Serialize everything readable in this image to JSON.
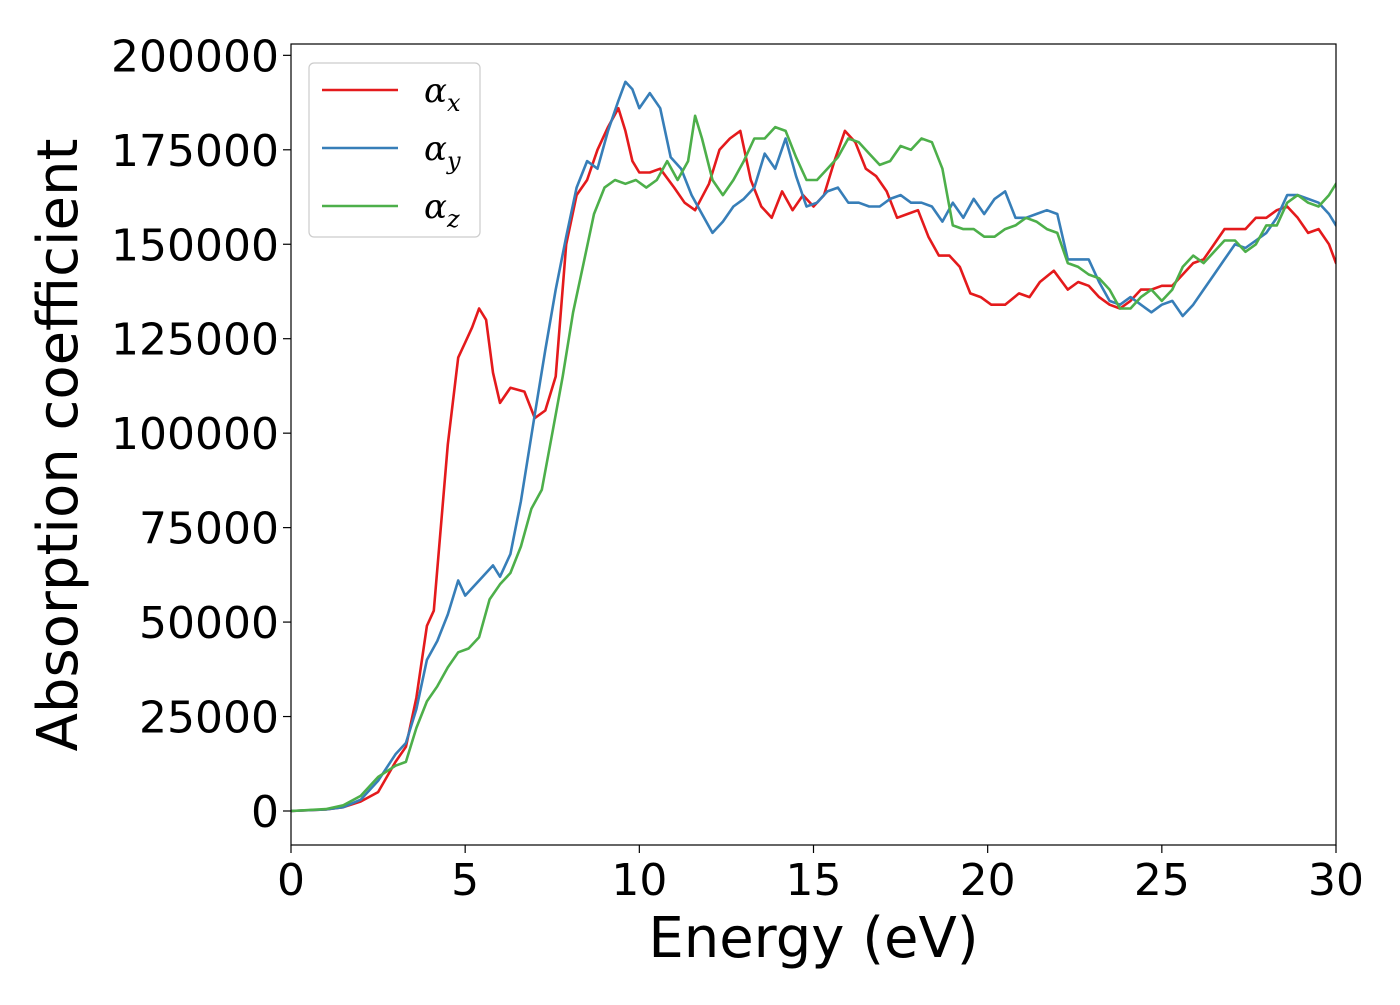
{
  "chart_data": {
    "type": "line",
    "xlabel": "Energy (eV)",
    "ylabel": "Absorption coefficient",
    "xlim": [
      0,
      30
    ],
    "ylim": [
      -9000,
      203000
    ],
    "xticks": [
      0,
      5,
      10,
      15,
      20,
      25,
      30
    ],
    "xtick_labels": [
      "0",
      "5",
      "10",
      "15",
      "20",
      "25",
      "30"
    ],
    "yticks": [
      0,
      25000,
      50000,
      75000,
      100000,
      125000,
      150000,
      175000,
      200000
    ],
    "ytick_labels": [
      "0",
      "25000",
      "50000",
      "75000",
      "100000",
      "125000",
      "150000",
      "175000",
      "200000"
    ],
    "grid": false,
    "legend_position": "top-left",
    "series": [
      {
        "name": "α",
        "subscript": "x",
        "color": "#e41a1c",
        "x": [
          0,
          1,
          1.5,
          2,
          2.5,
          3,
          3.3,
          3.6,
          3.9,
          4.1,
          4.3,
          4.5,
          4.8,
          5.0,
          5.2,
          5.4,
          5.6,
          5.8,
          6.0,
          6.3,
          6.7,
          7.0,
          7.3,
          7.6,
          7.9,
          8.2,
          8.5,
          8.8,
          9.1,
          9.4,
          9.6,
          9.8,
          10.0,
          10.3,
          10.6,
          11.0,
          11.3,
          11.6,
          12.0,
          12.3,
          12.6,
          12.9,
          13.2,
          13.5,
          13.8,
          14.1,
          14.4,
          14.7,
          15.0,
          15.3,
          15.6,
          15.9,
          16.2,
          16.5,
          16.8,
          17.1,
          17.4,
          17.7,
          18.0,
          18.3,
          18.6,
          18.9,
          19.2,
          19.5,
          19.8,
          20.1,
          20.5,
          20.9,
          21.2,
          21.5,
          21.9,
          22.3,
          22.6,
          22.9,
          23.2,
          23.5,
          23.8,
          24.1,
          24.4,
          24.7,
          25.0,
          25.3,
          25.6,
          25.9,
          26.2,
          26.5,
          26.8,
          27.1,
          27.4,
          27.7,
          28.0,
          28.3,
          28.6,
          28.9,
          29.2,
          29.5,
          29.8,
          30.0
        ],
        "y": [
          0,
          400,
          1000,
          2500,
          5000,
          13000,
          17000,
          30000,
          49000,
          53000,
          75000,
          97000,
          120000,
          124000,
          128000,
          133000,
          130000,
          116000,
          108000,
          112000,
          111000,
          104000,
          106000,
          115000,
          150000,
          163000,
          167000,
          175000,
          181000,
          186000,
          180000,
          172000,
          169000,
          169000,
          170000,
          165000,
          161000,
          159000,
          166000,
          175000,
          178000,
          180000,
          167000,
          160000,
          157000,
          164000,
          159000,
          163000,
          160000,
          163000,
          172000,
          180000,
          177000,
          170000,
          168000,
          164000,
          157000,
          158000,
          159000,
          152000,
          147000,
          147000,
          144000,
          137000,
          136000,
          134000,
          134000,
          137000,
          136000,
          140000,
          143000,
          138000,
          140000,
          139000,
          136000,
          134000,
          133000,
          135000,
          138000,
          138000,
          139000,
          139000,
          142000,
          145000,
          146000,
          150000,
          154000,
          154000,
          154000,
          157000,
          157000,
          159000,
          160000,
          157000,
          153000,
          154000,
          150000,
          145000
        ]
      },
      {
        "name": "α",
        "subscript": "y",
        "color": "#377eb8",
        "x": [
          0,
          1,
          1.5,
          2,
          2.5,
          3,
          3.3,
          3.6,
          3.9,
          4.2,
          4.5,
          4.8,
          5.0,
          5.2,
          5.5,
          5.8,
          6.0,
          6.3,
          6.6,
          7.0,
          7.3,
          7.6,
          7.9,
          8.2,
          8.5,
          8.8,
          9.1,
          9.4,
          9.6,
          9.8,
          10.0,
          10.3,
          10.6,
          10.9,
          11.2,
          11.5,
          11.8,
          12.1,
          12.4,
          12.7,
          13.0,
          13.3,
          13.6,
          13.9,
          14.2,
          14.5,
          14.8,
          15.1,
          15.4,
          15.7,
          16.0,
          16.3,
          16.6,
          16.9,
          17.2,
          17.5,
          17.8,
          18.1,
          18.4,
          18.7,
          19.0,
          19.3,
          19.6,
          19.9,
          20.2,
          20.5,
          20.8,
          21.1,
          21.4,
          21.7,
          22.0,
          22.3,
          22.6,
          22.9,
          23.2,
          23.5,
          23.8,
          24.1,
          24.4,
          24.7,
          25.0,
          25.3,
          25.6,
          25.9,
          26.2,
          26.5,
          26.8,
          27.1,
          27.4,
          27.7,
          28.0,
          28.3,
          28.6,
          28.9,
          29.2,
          29.5,
          29.8,
          30.0
        ],
        "y": [
          0,
          400,
          1000,
          3000,
          8000,
          15000,
          18000,
          27000,
          40000,
          45000,
          52000,
          61000,
          57000,
          59000,
          62000,
          65000,
          62000,
          68000,
          82000,
          105000,
          122000,
          138000,
          152000,
          165000,
          172000,
          170000,
          180000,
          188000,
          193000,
          191000,
          186000,
          190000,
          186000,
          173000,
          170000,
          163000,
          158000,
          153000,
          156000,
          160000,
          162000,
          165000,
          174000,
          170000,
          178000,
          168000,
          160000,
          161000,
          164000,
          165000,
          161000,
          161000,
          160000,
          160000,
          162000,
          163000,
          161000,
          161000,
          160000,
          156000,
          161000,
          157000,
          162000,
          158000,
          162000,
          164000,
          157000,
          157000,
          158000,
          159000,
          158000,
          146000,
          146000,
          146000,
          140000,
          135000,
          134000,
          136000,
          134000,
          132000,
          134000,
          135000,
          131000,
          134000,
          138000,
          142000,
          146000,
          150000,
          149000,
          151000,
          153000,
          157000,
          163000,
          163000,
          162000,
          161000,
          158000,
          155000
        ]
      },
      {
        "name": "α",
        "subscript": "z",
        "color": "#4daf4a",
        "x": [
          0,
          1,
          1.5,
          2,
          2.5,
          3,
          3.3,
          3.6,
          3.9,
          4.2,
          4.5,
          4.8,
          5.1,
          5.4,
          5.7,
          6.0,
          6.3,
          6.6,
          6.9,
          7.2,
          7.5,
          7.8,
          8.1,
          8.4,
          8.7,
          9.0,
          9.3,
          9.6,
          9.9,
          10.2,
          10.5,
          10.8,
          11.1,
          11.4,
          11.6,
          11.8,
          12.1,
          12.4,
          12.7,
          13.0,
          13.3,
          13.6,
          13.9,
          14.2,
          14.5,
          14.8,
          15.1,
          15.4,
          15.7,
          16.0,
          16.3,
          16.6,
          16.9,
          17.2,
          17.5,
          17.8,
          18.1,
          18.4,
          18.7,
          19.0,
          19.3,
          19.6,
          19.9,
          20.2,
          20.5,
          20.8,
          21.1,
          21.4,
          21.7,
          22.0,
          22.3,
          22.6,
          22.9,
          23.2,
          23.5,
          23.8,
          24.1,
          24.4,
          24.7,
          25.0,
          25.3,
          25.6,
          25.9,
          26.2,
          26.5,
          26.8,
          27.1,
          27.4,
          27.7,
          28.0,
          28.3,
          28.6,
          28.9,
          29.2,
          29.5,
          29.8,
          30.0
        ],
        "y": [
          0,
          500,
          1500,
          4000,
          9000,
          12000,
          13000,
          22000,
          29000,
          33000,
          38000,
          42000,
          43000,
          46000,
          56000,
          60000,
          63000,
          70000,
          80000,
          85000,
          100000,
          115000,
          132000,
          145000,
          158000,
          165000,
          167000,
          166000,
          167000,
          165000,
          167000,
          172000,
          167000,
          172000,
          184000,
          178000,
          167000,
          163000,
          167000,
          172000,
          178000,
          178000,
          181000,
          180000,
          173000,
          167000,
          167000,
          170000,
          173000,
          178000,
          177000,
          174000,
          171000,
          172000,
          176000,
          175000,
          178000,
          177000,
          170000,
          155000,
          154000,
          154000,
          152000,
          152000,
          154000,
          155000,
          157000,
          156000,
          154000,
          153000,
          145000,
          144000,
          142000,
          141000,
          138000,
          133000,
          133000,
          136000,
          138000,
          135000,
          138000,
          144000,
          147000,
          145000,
          148000,
          151000,
          151000,
          148000,
          150000,
          155000,
          155000,
          161000,
          163000,
          161000,
          160000,
          163000,
          166000
        ]
      }
    ]
  }
}
